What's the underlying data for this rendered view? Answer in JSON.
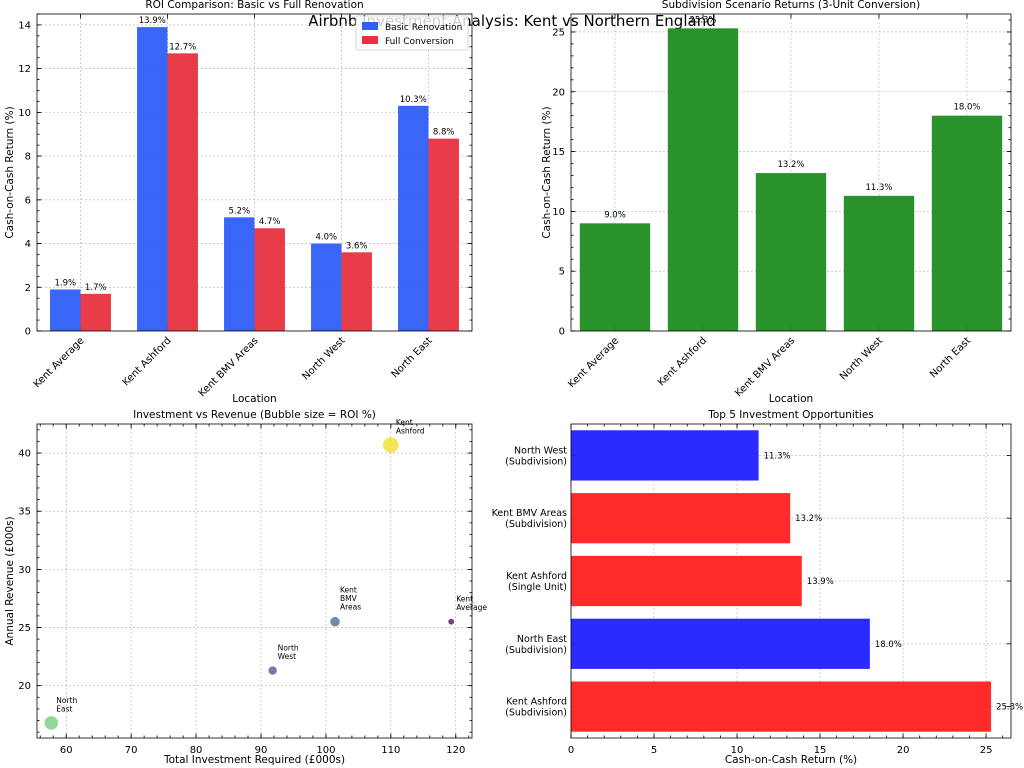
{
  "suptitle": "Airbnb Investment Analysis: Kent vs Northern England",
  "chart_data": [
    {
      "type": "bar",
      "title": "ROI Comparison: Basic vs Full Renovation",
      "xlabel": "Location",
      "ylabel": "Cash-on-Cash Return (%)",
      "categories": [
        "Kent Average",
        "Kent Ashford",
        "Kent BMV Areas",
        "North West",
        "North East"
      ],
      "series": [
        {
          "name": "Basic Renovation",
          "color": "#2e5ef5",
          "values": [
            1.9,
            13.9,
            5.2,
            4.0,
            10.3
          ],
          "labels": [
            "1.9%",
            "13.9%",
            "5.2%",
            "4.0%",
            "10.3%"
          ]
        },
        {
          "name": "Full Conversion",
          "color": "#e8323f",
          "values": [
            1.7,
            12.7,
            4.7,
            3.6,
            8.8
          ],
          "labels": [
            "1.7%",
            "12.7%",
            "4.7%",
            "3.6%",
            "8.8%"
          ]
        }
      ],
      "ylim": [
        0,
        14.5
      ],
      "yticks": [
        0,
        2,
        4,
        6,
        8,
        10,
        12,
        14
      ],
      "ytick_labels": [
        "0",
        "2",
        "4",
        "6",
        "8",
        "10",
        "12",
        "14"
      ],
      "legend": "top-right",
      "grid": true
    },
    {
      "type": "bar",
      "title": "Subdivision Scenario Returns (3-Unit Conversion)",
      "xlabel": "Location",
      "ylabel": "Cash-on-Cash Return (%)",
      "categories": [
        "Kent Average",
        "Kent Ashford",
        "Kent BMV Areas",
        "North West",
        "North East"
      ],
      "values": [
        9.0,
        25.3,
        13.2,
        11.3,
        18.0
      ],
      "labels": [
        "9.0%",
        "25.3%",
        "13.2%",
        "11.3%",
        "18.0%"
      ],
      "color": "#1f8c1f",
      "ylim": [
        0,
        26.5
      ],
      "yticks": [
        0,
        5,
        10,
        15,
        20,
        25
      ],
      "ytick_labels": [
        "0",
        "5",
        "10",
        "15",
        "20",
        "25"
      ],
      "grid": true
    },
    {
      "type": "scatter",
      "title": "Investment vs Revenue (Bubble size = ROI %)",
      "xlabel": "Total Investment Required (£000s)",
      "ylabel": "Annual Revenue (£000s)",
      "points": [
        {
          "name": "Kent Average",
          "label": "Kent\nAverage",
          "x": 119.3,
          "y": 25.5,
          "roi": 1.9,
          "color": "#5a2060"
        },
        {
          "name": "Kent Ashford",
          "label": "Kent\nAshford",
          "x": 110.0,
          "y": 40.7,
          "roi": 13.9,
          "color": "#f2e33a"
        },
        {
          "name": "Kent BMV Areas",
          "label": "Kent\nBMV\nAreas",
          "x": 101.4,
          "y": 25.5,
          "roi": 5.2,
          "color": "#5e759e"
        },
        {
          "name": "North West",
          "label": "North\nWest",
          "x": 91.8,
          "y": 21.3,
          "roi": 4.0,
          "color": "#6a5a94"
        },
        {
          "name": "North East",
          "label": "North\nEast",
          "x": 57.7,
          "y": 16.8,
          "roi": 10.3,
          "color": "#7fd182"
        }
      ],
      "xlim": [
        55.5,
        122.5
      ],
      "ylim": [
        15.5,
        42.5
      ],
      "xticks": [
        60,
        70,
        80,
        90,
        100,
        110,
        120
      ],
      "xtick_labels": [
        "60",
        "70",
        "80",
        "90",
        "100",
        "110",
        "120"
      ],
      "yticks": [
        20,
        25,
        30,
        35,
        40
      ],
      "ytick_labels": [
        "20",
        "25",
        "30",
        "35",
        "40"
      ],
      "grid": true
    },
    {
      "type": "barh",
      "title": "Top 5 Investment Opportunities",
      "xlabel": "Cash-on-Cash Return (%)",
      "categories": [
        "Kent Ashford\n(Subdivision)",
        "North East\n(Subdivision)",
        "Kent Ashford\n(Single Unit)",
        "Kent BMV Areas\n(Subdivision)",
        "North West\n(Subdivision)"
      ],
      "values": [
        25.3,
        18.0,
        13.9,
        13.2,
        11.3
      ],
      "labels": [
        "25.3%",
        "18.0%",
        "13.9%",
        "13.2%",
        "11.3%"
      ],
      "colors": [
        "#ff2020",
        "#2020ff",
        "#ff2020",
        "#ff2020",
        "#2020ff"
      ],
      "xlim": [
        0,
        26.5
      ],
      "xticks": [
        0,
        5,
        10,
        15,
        20,
        25
      ],
      "xtick_labels": [
        "0",
        "5",
        "10",
        "15",
        "20",
        "25"
      ],
      "grid": true
    }
  ]
}
